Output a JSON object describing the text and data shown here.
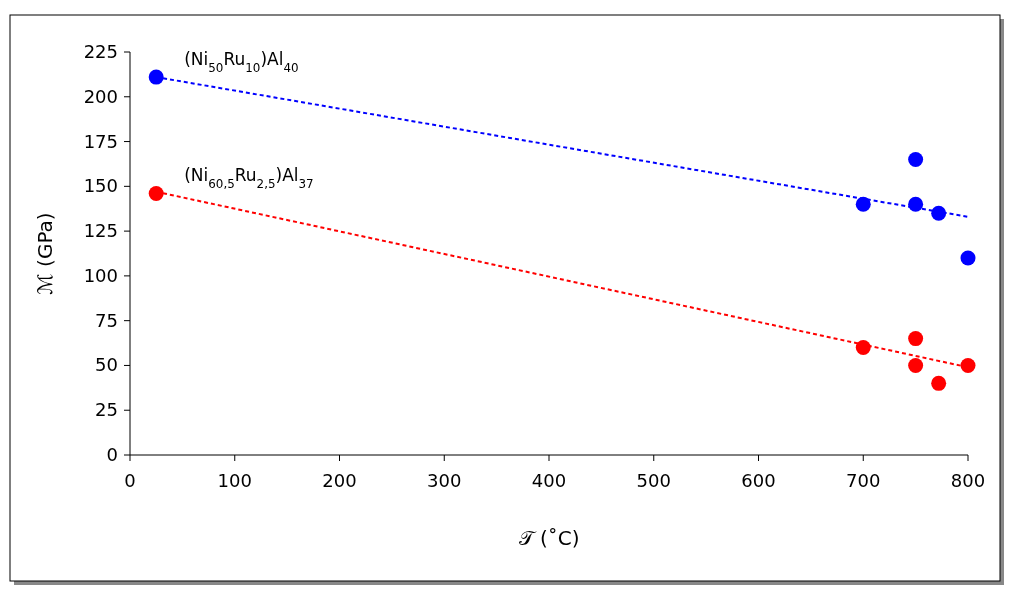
{
  "chart_data": {
    "type": "scatter",
    "xlabel": "𝒯 (˚C)",
    "ylabel": "ℳ  (GPa)",
    "xlim": [
      0,
      800
    ],
    "xticks": [
      0,
      100,
      200,
      300,
      400,
      500,
      600,
      700,
      800
    ],
    "ylim": [
      0,
      225
    ],
    "yticks": [
      0,
      25,
      50,
      75,
      100,
      125,
      150,
      175,
      200,
      225
    ],
    "grid": false,
    "series": [
      {
        "name": "(Ni$_{50}$Ru$_{10}$)Al$_{40}$",
        "color": "#0000ff",
        "marker": "circle",
        "x": [
          25,
          700,
          750,
          750,
          772,
          800
        ],
        "values": [
          211,
          140,
          165,
          140,
          135,
          110
        ]
      },
      {
        "name": "(Ni$_{60,5}$Ru$_{2,5}$)Al$_{37}$",
        "color": "#ff0000",
        "marker": "circle",
        "x": [
          25,
          700,
          750,
          750,
          772,
          800
        ],
        "values": [
          146,
          60,
          65,
          50,
          40,
          50
        ]
      },
      {
        "type": "line",
        "color": "#0000ff",
        "line_style": "dashed",
        "marker": "none",
        "x": [
          25,
          800
        ],
        "values": [
          211,
          133
        ]
      },
      {
        "type": "line",
        "color": "#ff0000",
        "line_style": "dashed",
        "marker": "none",
        "x": [
          25,
          800
        ],
        "values": [
          147,
          49
        ]
      }
    ]
  }
}
